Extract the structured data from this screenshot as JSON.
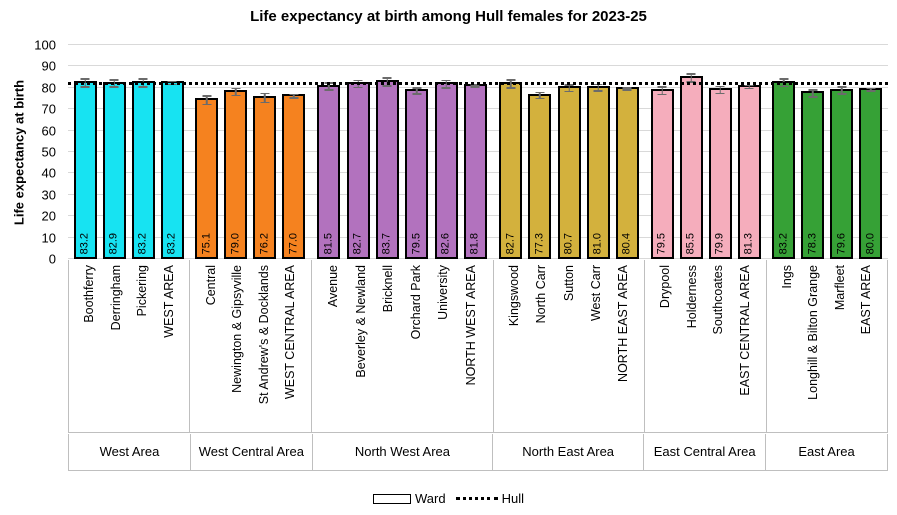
{
  "title": "Life expectancy at birth among Hull females for 2023-25",
  "y_axis": {
    "label": "Life expectancy at birth",
    "ticks": [
      0,
      10,
      20,
      30,
      40,
      50,
      60,
      70,
      80,
      90,
      100
    ]
  },
  "legend": {
    "ward_label": "Ward",
    "hull_label": "Hull"
  },
  "chart_data": {
    "type": "bar",
    "title": "Life expectancy at birth among Hull females for 2023-25",
    "xlabel": "",
    "ylabel": "Life expectancy at birth",
    "ylim": [
      0,
      100
    ],
    "grid": true,
    "legend_position": "bottom",
    "legend_entries": [
      "Ward",
      "Hull"
    ],
    "reference_line": {
      "name": "Hull",
      "value": 81.4,
      "style": "dotted",
      "color": "#000000"
    },
    "error_bar_color": "#6b6b6b",
    "groups": [
      {
        "area": "West Area",
        "color": "#17E3F2",
        "bars": [
          {
            "ward": "Boothferry",
            "value": 83.2,
            "err": 2.2
          },
          {
            "ward": "Derringham",
            "value": 82.9,
            "err": 2.0
          },
          {
            "ward": "Pickering",
            "value": 83.2,
            "err": 2.3
          },
          {
            "ward": "WEST AREA",
            "value": 83.2,
            "err": 1.1
          }
        ]
      },
      {
        "area": "West Central Area",
        "color": "#F5821F",
        "bars": [
          {
            "ward": "Central",
            "value": 75.1,
            "err": 2.4
          },
          {
            "ward": "Newington & Gipsyville",
            "value": 79.0,
            "err": 2.0
          },
          {
            "ward": "St Andrew's & Docklands",
            "value": 76.2,
            "err": 2.4
          },
          {
            "ward": "WEST CENTRAL AREA",
            "value": 77.0,
            "err": 1.2
          }
        ]
      },
      {
        "area": "North West Area",
        "color": "#B272BE",
        "bars": [
          {
            "ward": "Avenue",
            "value": 81.5,
            "err": 2.0
          },
          {
            "ward": "Beverley & Newland",
            "value": 82.7,
            "err": 2.0
          },
          {
            "ward": "Bricknell",
            "value": 83.7,
            "err": 2.2
          },
          {
            "ward": "Orchard Park",
            "value": 79.5,
            "err": 1.8
          },
          {
            "ward": "University",
            "value": 82.6,
            "err": 2.2
          },
          {
            "ward": "NORTH WEST AREA",
            "value": 81.8,
            "err": 0.9
          }
        ]
      },
      {
        "area": "North East Area",
        "color": "#D3B13D",
        "bars": [
          {
            "ward": "Kingswood",
            "value": 82.7,
            "err": 2.2
          },
          {
            "ward": "North Carr",
            "value": 77.3,
            "err": 1.8
          },
          {
            "ward": "Sutton",
            "value": 80.7,
            "err": 1.9
          },
          {
            "ward": "West Carr",
            "value": 81.0,
            "err": 1.9
          },
          {
            "ward": "NORTH EAST AREA",
            "value": 80.4,
            "err": 0.9
          }
        ]
      },
      {
        "area": "East Central Area",
        "color": "#F5ADBC",
        "bars": [
          {
            "ward": "Drypool",
            "value": 79.5,
            "err": 2.1
          },
          {
            "ward": "Holderness",
            "value": 85.5,
            "err": 2.3
          },
          {
            "ward": "Southcoates",
            "value": 79.9,
            "err": 2.0
          },
          {
            "ward": "EAST CENTRAL AREA",
            "value": 81.3,
            "err": 1.1
          }
        ]
      },
      {
        "area": "East Area",
        "color": "#36A136",
        "bars": [
          {
            "ward": "Ings",
            "value": 83.2,
            "err": 2.1
          },
          {
            "ward": "Longhill & Bilton Grange",
            "value": 78.3,
            "err": 1.9
          },
          {
            "ward": "Marfleet",
            "value": 79.6,
            "err": 2.0
          },
          {
            "ward": "EAST AREA",
            "value": 80.0,
            "err": 1.0
          }
        ]
      }
    ]
  }
}
